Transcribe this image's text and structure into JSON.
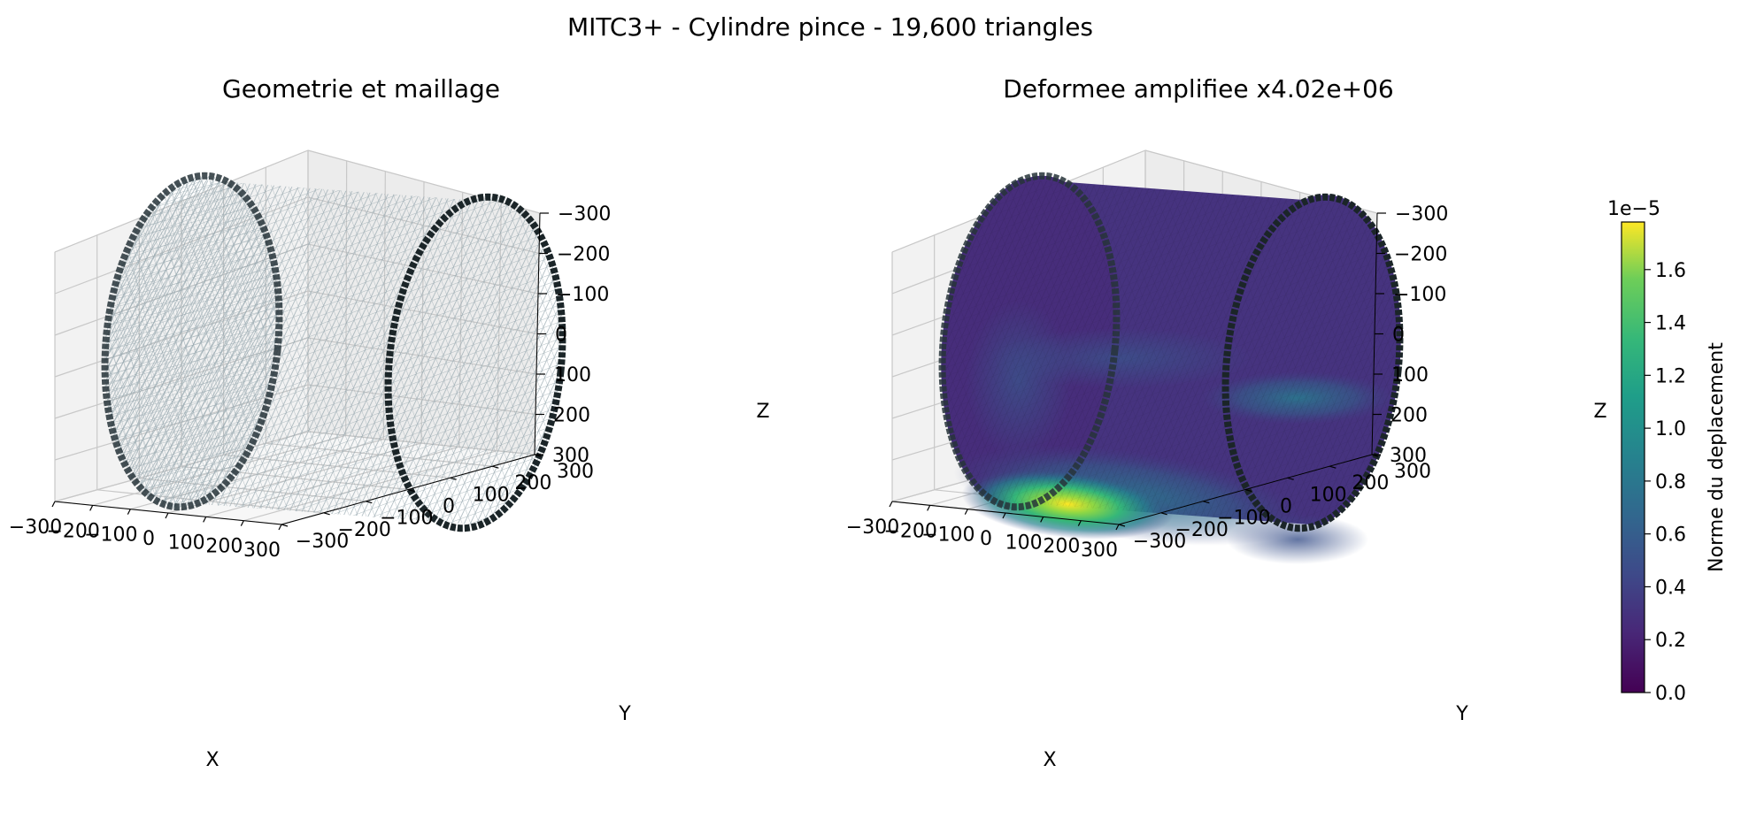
{
  "figure": {
    "title": "MITC3+ - Cylindre pince - 19,600 triangles"
  },
  "chart_data": [
    {
      "type": "scatter",
      "title": "Geometrie et maillage",
      "projection": "3d",
      "xlabel": "X",
      "ylabel": "Y",
      "zlabel": "Z",
      "xlim": [
        -300,
        300
      ],
      "ylim": [
        -300,
        300
      ],
      "zlim": [
        -300,
        300
      ],
      "xticks": [
        "−300",
        "−200",
        "−100",
        "0",
        "100",
        "200",
        "300"
      ],
      "yticks": [
        "−300",
        "−200",
        "−100",
        "0",
        "100",
        "200",
        "300"
      ],
      "zticks": [
        "−300",
        "−200",
        "−100",
        "0",
        "100",
        "200",
        "300"
      ],
      "surface": {
        "kind": "cylinder",
        "radius": 300,
        "axis": "y",
        "y_range": [
          -300,
          300
        ],
        "style": "wireframe",
        "color": "#8a9ba3"
      },
      "boundary_nodes": {
        "color": "#1f2b2f"
      },
      "grid": true
    },
    {
      "type": "heatmap",
      "title": "Deformee amplifiee x4.02e+06",
      "projection": "3d",
      "xlabel": "X",
      "ylabel": "Y",
      "zlabel": "Z",
      "xlim": [
        -300,
        300
      ],
      "ylim": [
        -300,
        300
      ],
      "zlim": [
        -300,
        300
      ],
      "xticks": [
        "−300",
        "−200",
        "−100",
        "0",
        "100",
        "200",
        "300"
      ],
      "yticks": [
        "−300",
        "−200",
        "−100",
        "0",
        "100",
        "200",
        "300"
      ],
      "zticks": [
        "−300",
        "−200",
        "−100",
        "0",
        "100",
        "200",
        "300"
      ],
      "surface": {
        "kind": "cylinder",
        "radius": 300,
        "axis": "y",
        "y_range": [
          -300,
          300
        ],
        "style": "filled",
        "colormap": "viridis"
      },
      "colorbar": {
        "label": "Norme du deplacement",
        "scale_label": "1e−5",
        "range": [
          0.0,
          1.78
        ],
        "ticks": [
          "0.0",
          "0.2",
          "0.4",
          "0.6",
          "0.8",
          "1.0",
          "1.2",
          "1.4",
          "1.6"
        ]
      },
      "grid": true
    }
  ]
}
